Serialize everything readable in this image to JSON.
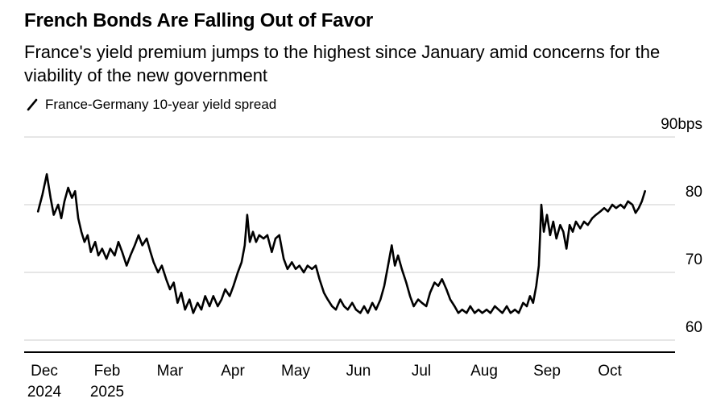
{
  "page": {
    "background": "#ffffff"
  },
  "header": {
    "title": "French Bonds Are Falling Out of Favor",
    "subtitle": "France's yield premium jumps to the highest since January amid concerns for the viability of the new government"
  },
  "legend": {
    "label": "France-Germany 10-year yield spread",
    "series_color": "#000000"
  },
  "chart_data": {
    "type": "line",
    "title": "French Bonds Are Falling Out of Favor",
    "subtitle": "France's yield premium jumps to the highest since January amid concerns for the viability of the new government",
    "unit": "bps",
    "xlabel": "",
    "ylabel": "",
    "ylim": [
      58,
      92
    ],
    "grid": "horizontal",
    "grid_color": "#cccccc",
    "axis_color": "#000000",
    "legend_position": "top-left",
    "x_range_note": "Dec 2024 to mid-Oct 2025, x in month-tick units (0 = Dec tick, 1 = Feb, 9 = Oct)",
    "yticks": [
      {
        "value": 90,
        "label": "90bps"
      },
      {
        "value": 80,
        "label": "80"
      },
      {
        "value": 70,
        "label": "70"
      },
      {
        "value": 60,
        "label": "60"
      }
    ],
    "xticks": [
      {
        "u": 0,
        "label": "Dec",
        "sublabel": "2024"
      },
      {
        "u": 1,
        "label": "Feb",
        "sublabel": "2025"
      },
      {
        "u": 2,
        "label": "Mar"
      },
      {
        "u": 3,
        "label": "Apr"
      },
      {
        "u": 4,
        "label": "May"
      },
      {
        "u": 5,
        "label": "Jun"
      },
      {
        "u": 6,
        "label": "Jul"
      },
      {
        "u": 7,
        "label": "Aug"
      },
      {
        "u": 8,
        "label": "Sep"
      },
      {
        "u": 9,
        "label": "Oct"
      }
    ],
    "series": [
      {
        "name": "France-Germany 10-year yield spread",
        "color": "#000000",
        "points": [
          [
            -0.1,
            79
          ],
          [
            -0.03,
            81.5
          ],
          [
            0.04,
            84.5
          ],
          [
            0.1,
            81
          ],
          [
            0.15,
            78.5
          ],
          [
            0.22,
            80
          ],
          [
            0.27,
            78
          ],
          [
            0.32,
            80.5
          ],
          [
            0.38,
            82.5
          ],
          [
            0.44,
            81
          ],
          [
            0.49,
            82
          ],
          [
            0.54,
            78
          ],
          [
            0.59,
            76
          ],
          [
            0.64,
            74.5
          ],
          [
            0.69,
            75.5
          ],
          [
            0.74,
            73
          ],
          [
            0.81,
            74.5
          ],
          [
            0.86,
            72.5
          ],
          [
            0.92,
            73.5
          ],
          [
            0.99,
            72
          ],
          [
            1.05,
            73.5
          ],
          [
            1.12,
            72.5
          ],
          [
            1.18,
            74.5
          ],
          [
            1.24,
            73
          ],
          [
            1.31,
            71
          ],
          [
            1.37,
            72.5
          ],
          [
            1.44,
            74
          ],
          [
            1.5,
            75.5
          ],
          [
            1.56,
            74
          ],
          [
            1.63,
            75
          ],
          [
            1.69,
            73
          ],
          [
            1.74,
            71.5
          ],
          [
            1.81,
            70
          ],
          [
            1.87,
            71
          ],
          [
            1.94,
            69
          ],
          [
            2.0,
            67.5
          ],
          [
            2.06,
            68.5
          ],
          [
            2.12,
            65.5
          ],
          [
            2.18,
            67
          ],
          [
            2.24,
            64.5
          ],
          [
            2.31,
            66
          ],
          [
            2.37,
            64
          ],
          [
            2.44,
            65.5
          ],
          [
            2.5,
            64.5
          ],
          [
            2.56,
            66.5
          ],
          [
            2.63,
            65
          ],
          [
            2.69,
            66.5
          ],
          [
            2.76,
            65
          ],
          [
            2.82,
            66
          ],
          [
            2.88,
            67.5
          ],
          [
            2.95,
            66.5
          ],
          [
            3.01,
            68
          ],
          [
            3.08,
            70
          ],
          [
            3.14,
            71.5
          ],
          [
            3.19,
            74
          ],
          [
            3.23,
            78.5
          ],
          [
            3.27,
            74.5
          ],
          [
            3.32,
            76
          ],
          [
            3.37,
            74.5
          ],
          [
            3.42,
            75.5
          ],
          [
            3.49,
            75
          ],
          [
            3.55,
            75.5
          ],
          [
            3.62,
            73
          ],
          [
            3.68,
            75
          ],
          [
            3.74,
            75.5
          ],
          [
            3.81,
            72
          ],
          [
            3.87,
            70.5
          ],
          [
            3.94,
            71.5
          ],
          [
            4.0,
            70.5
          ],
          [
            4.06,
            71
          ],
          [
            4.13,
            70
          ],
          [
            4.19,
            71
          ],
          [
            4.26,
            70.5
          ],
          [
            4.32,
            71
          ],
          [
            4.38,
            69
          ],
          [
            4.45,
            67
          ],
          [
            4.51,
            66
          ],
          [
            4.58,
            65
          ],
          [
            4.64,
            64.5
          ],
          [
            4.71,
            66
          ],
          [
            4.77,
            65
          ],
          [
            4.83,
            64.5
          ],
          [
            4.9,
            65.5
          ],
          [
            4.96,
            64.5
          ],
          [
            5.03,
            64
          ],
          [
            5.09,
            65
          ],
          [
            5.15,
            64
          ],
          [
            5.22,
            65.5
          ],
          [
            5.28,
            64.5
          ],
          [
            5.35,
            66
          ],
          [
            5.41,
            68
          ],
          [
            5.47,
            71
          ],
          [
            5.53,
            74
          ],
          [
            5.58,
            71
          ],
          [
            5.63,
            72.5
          ],
          [
            5.69,
            70.5
          ],
          [
            5.76,
            68.5
          ],
          [
            5.82,
            66.5
          ],
          [
            5.88,
            65
          ],
          [
            5.95,
            66
          ],
          [
            6.01,
            65.5
          ],
          [
            6.08,
            65
          ],
          [
            6.14,
            67
          ],
          [
            6.21,
            68.5
          ],
          [
            6.27,
            68
          ],
          [
            6.33,
            69
          ],
          [
            6.4,
            67.5
          ],
          [
            6.46,
            66
          ],
          [
            6.53,
            65
          ],
          [
            6.59,
            64
          ],
          [
            6.65,
            64.5
          ],
          [
            6.72,
            64
          ],
          [
            6.78,
            65
          ],
          [
            6.85,
            64
          ],
          [
            6.91,
            64.5
          ],
          [
            6.97,
            64
          ],
          [
            7.04,
            64.5
          ],
          [
            7.1,
            64
          ],
          [
            7.17,
            65
          ],
          [
            7.23,
            64.5
          ],
          [
            7.29,
            64
          ],
          [
            7.36,
            65
          ],
          [
            7.42,
            64
          ],
          [
            7.49,
            64.5
          ],
          [
            7.55,
            64
          ],
          [
            7.62,
            65.5
          ],
          [
            7.68,
            65
          ],
          [
            7.73,
            66.5
          ],
          [
            7.78,
            65.5
          ],
          [
            7.83,
            68
          ],
          [
            7.87,
            71
          ],
          [
            7.91,
            80
          ],
          [
            7.95,
            76
          ],
          [
            8.0,
            78.5
          ],
          [
            8.05,
            75.5
          ],
          [
            8.1,
            77.5
          ],
          [
            8.15,
            75
          ],
          [
            8.21,
            77
          ],
          [
            8.26,
            76
          ],
          [
            8.31,
            73.5
          ],
          [
            8.36,
            77
          ],
          [
            8.41,
            76
          ],
          [
            8.46,
            77.5
          ],
          [
            8.53,
            76.5
          ],
          [
            8.59,
            77.5
          ],
          [
            8.65,
            77
          ],
          [
            8.72,
            78
          ],
          [
            8.78,
            78.5
          ],
          [
            8.85,
            79
          ],
          [
            8.91,
            79.5
          ],
          [
            8.97,
            79
          ],
          [
            9.04,
            80
          ],
          [
            9.1,
            79.5
          ],
          [
            9.17,
            80
          ],
          [
            9.23,
            79.5
          ],
          [
            9.29,
            80.5
          ],
          [
            9.36,
            80
          ],
          [
            9.41,
            78.8
          ],
          [
            9.46,
            79.5
          ],
          [
            9.51,
            80.5
          ],
          [
            9.56,
            82
          ]
        ]
      }
    ]
  }
}
